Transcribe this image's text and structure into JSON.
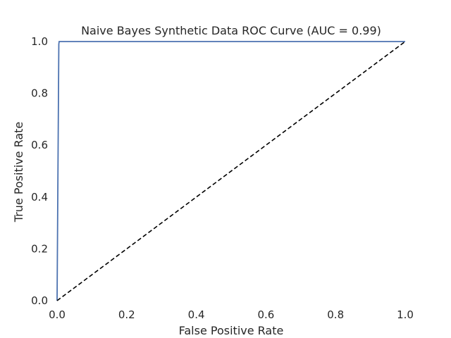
{
  "chart_data": {
    "type": "line",
    "title": "Naive Bayes Synthetic Data ROC Curve (AUC = 0.99)",
    "xlabel": "False Positive Rate",
    "ylabel": "True Positive Rate",
    "xlim": [
      0.0,
      1.0
    ],
    "ylim": [
      0.0,
      1.0
    ],
    "grid": false,
    "x_ticks": [
      "0.0",
      "0.2",
      "0.4",
      "0.6",
      "0.8",
      "1.0"
    ],
    "y_ticks": [
      "0.0",
      "0.2",
      "0.4",
      "0.6",
      "0.8",
      "1.0"
    ],
    "series": [
      {
        "style": "solid",
        "color": "#4c72b0",
        "x": [
          0.0,
          0.005,
          0.006,
          1.0
        ],
        "y": [
          0.0,
          0.99,
          1.0,
          1.0
        ]
      },
      {
        "style": "dashed",
        "color": "#000000",
        "x": [
          0.0,
          1.0
        ],
        "y": [
          0.0,
          1.0
        ]
      }
    ]
  }
}
